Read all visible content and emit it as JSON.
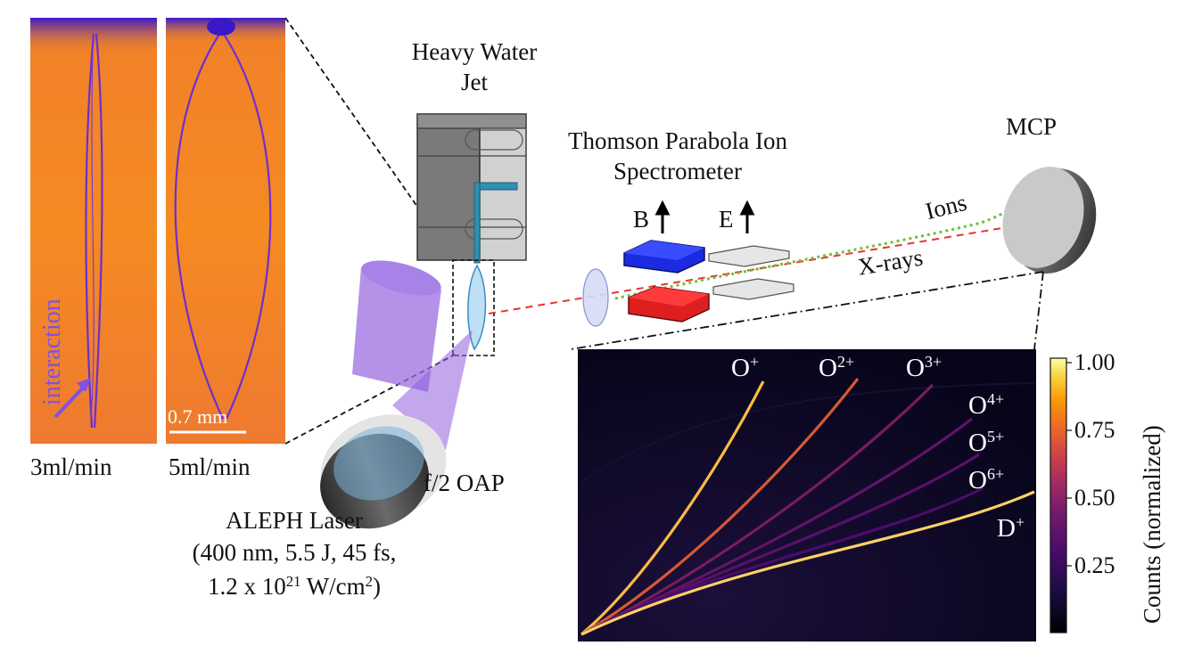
{
  "photos": {
    "left_caption": "3ml/min",
    "right_caption": "5ml/min",
    "interaction_label": "interaction",
    "scale_bar": "0.7 mm"
  },
  "jet": {
    "title_line1": "Heavy Water",
    "title_line2": "Jet"
  },
  "laser": {
    "oap_label": "f/2 OAP",
    "title": "ALEPH Laser",
    "params_line1": "(400 nm, 5.5 J, 45 fs,",
    "params_line2_prefix": "1.2 x 10",
    "params_line2_exp": "21",
    "params_line2_mid": " W/cm",
    "params_line2_exp2": "2",
    "params_line2_suffix": ")"
  },
  "spectrometer": {
    "title_line1": "Thomson Parabola Ion",
    "title_line2": "Spectrometer",
    "b_label": "B",
    "e_label": "E",
    "ions_label": "Ions",
    "xrays_label": "X-rays",
    "mcp_label": "MCP"
  },
  "colors": {
    "photo_orange": "#f58a22",
    "photo_edge_purple": "#6b2fd1",
    "magnet_blue": "#1a2be0",
    "magnet_red": "#dd1f1f",
    "xray_line": "#e8352a",
    "ion_trace": "#6fbf3a",
    "laser_beam": "#9b6ee0"
  },
  "chart_data": {
    "type": "heatmap",
    "title": "",
    "colorbar_label": "Counts (normalized)",
    "colorbar_ticks": [
      "1.00",
      "0.75",
      "0.50",
      "0.25"
    ],
    "colormap": "inferno-like (black-purple-orange-yellow-white)",
    "traces": [
      {
        "name": "O",
        "charge": "+",
        "intensity": 0.85
      },
      {
        "name": "O",
        "charge": "2+",
        "intensity": 0.6
      },
      {
        "name": "O",
        "charge": "3+",
        "intensity": 0.35
      },
      {
        "name": "O",
        "charge": "4+",
        "intensity": 0.3
      },
      {
        "name": "O",
        "charge": "5+",
        "intensity": 0.28
      },
      {
        "name": "O",
        "charge": "6+",
        "intensity": 0.25
      },
      {
        "name": "D",
        "charge": "+",
        "intensity": 0.9
      }
    ]
  }
}
